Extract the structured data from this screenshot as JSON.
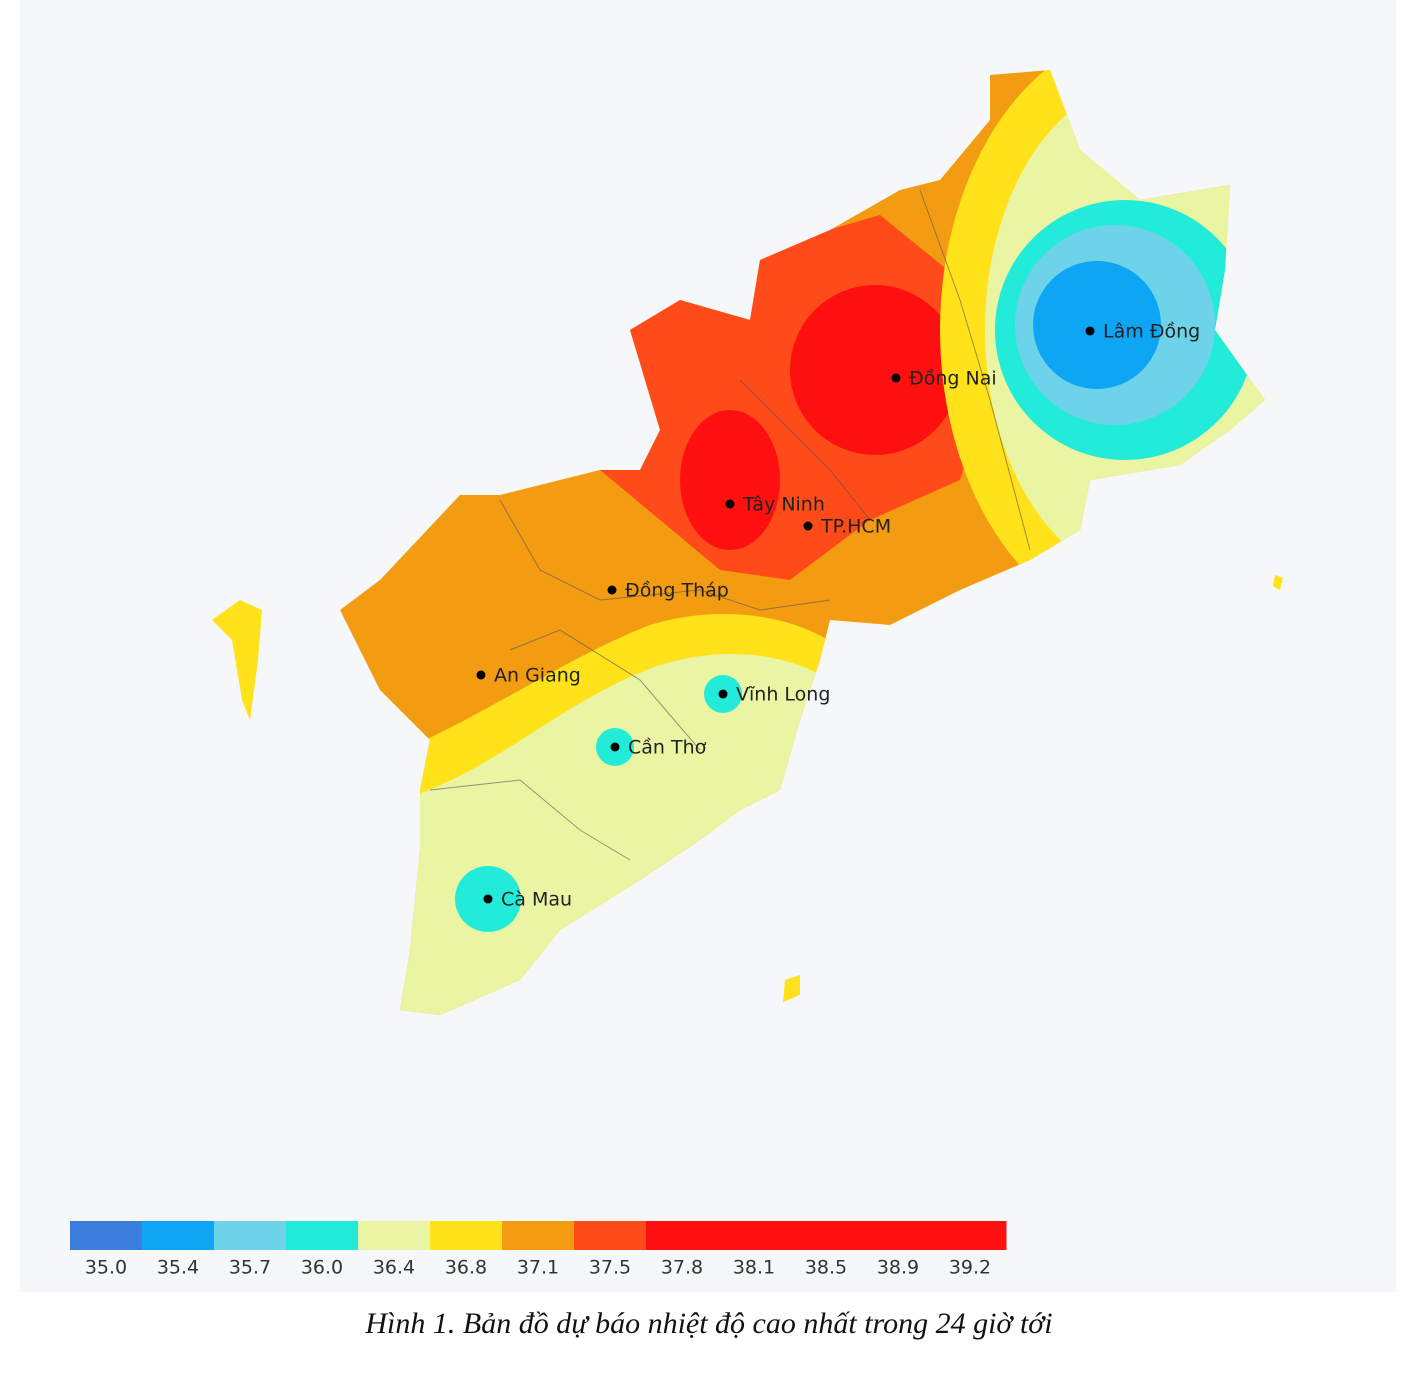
{
  "map": {
    "places": [
      "Lâm Đồng",
      "Đồng Nai",
      "Tây Ninh",
      "TP.HCM",
      "Đồng Tháp",
      "An Giang",
      "Vĩnh Long",
      "Cần Thơ",
      "Cà Mau"
    ]
  },
  "legend": {
    "bins": [
      {
        "value": 35.0,
        "label": "35.0",
        "color": "#3a7ddd"
      },
      {
        "value": 35.4,
        "label": "35.4",
        "color": "#0ea5f5"
      },
      {
        "value": 35.7,
        "label": "35.7",
        "color": "#6dd3e8"
      },
      {
        "value": 36.0,
        "label": "36.0",
        "color": "#22ecd9"
      },
      {
        "value": 36.4,
        "label": "36.4",
        "color": "#e9f5a2"
      },
      {
        "value": 36.8,
        "label": "36.8",
        "color": "#ffe21a"
      },
      {
        "value": 37.1,
        "label": "37.1",
        "color": "#f39c12"
      },
      {
        "value": 37.5,
        "label": "37.5",
        "color": "#ff4a1a"
      },
      {
        "value": 37.8,
        "label": "37.8",
        "color": "#ff1010"
      },
      {
        "value": 38.1,
        "label": "38.1",
        "color": "#ff1010"
      },
      {
        "value": 38.5,
        "label": "38.5",
        "color": "#ff1010"
      },
      {
        "value": 38.9,
        "label": "38.9",
        "color": "#ff1010"
      },
      {
        "value": 39.2,
        "label": "39.2",
        "color": "#ff1010"
      }
    ]
  },
  "caption": "Hình 1. Bản đồ dự báo nhiệt độ cao nhất trong 24 giờ tới"
}
